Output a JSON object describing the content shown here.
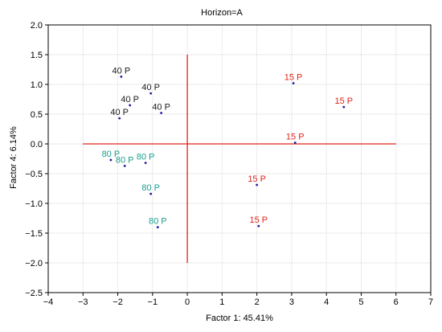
{
  "chart_data": {
    "type": "scatter",
    "title": "Horizon=A",
    "xlabel": "Factor 1: 45.41%",
    "ylabel": "Factor 4:  6.14%",
    "xlim": [
      -4,
      7
    ],
    "ylim": [
      -2.5,
      2.0
    ],
    "xticks": [
      -4,
      -3,
      -2,
      -1,
      0,
      1,
      2,
      3,
      4,
      5,
      6,
      7
    ],
    "yticks": [
      -2.5,
      -2.0,
      -1.5,
      -1.0,
      -0.5,
      0.0,
      0.5,
      1.0,
      1.5,
      2.0
    ],
    "xtick_labels": [
      "−4",
      "−3",
      "−2",
      "−1",
      "0",
      "1",
      "2",
      "3",
      "4",
      "5",
      "6",
      "7"
    ],
    "ytick_labels": [
      "−2.5",
      "−2.0",
      "−1.5",
      "−1.0",
      "−0.5",
      "0.0",
      "0.5",
      "1.0",
      "1.5",
      "2.0"
    ],
    "grid": true,
    "series": [
      {
        "label": "40 P",
        "color": "#1a1a1a",
        "points": [
          [
            -1.9,
            1.13
          ],
          [
            -1.05,
            0.85
          ],
          [
            -1.65,
            0.65
          ],
          [
            -0.75,
            0.52
          ],
          [
            -1.95,
            0.43
          ]
        ]
      },
      {
        "label": "80 P",
        "color": "#1a9e8e",
        "points": [
          [
            -2.2,
            -0.27
          ],
          [
            -1.8,
            -0.37
          ],
          [
            -1.2,
            -0.32
          ],
          [
            -1.05,
            -0.84
          ],
          [
            -0.85,
            -1.4
          ]
        ]
      },
      {
        "label": "15 P",
        "color": "#e0241c",
        "points": [
          [
            3.05,
            1.02
          ],
          [
            4.5,
            0.62
          ],
          [
            3.1,
            0.02
          ],
          [
            2.0,
            -0.69
          ],
          [
            2.05,
            -1.38
          ]
        ]
      }
    ],
    "reference_lines": {
      "x": 0,
      "y": 0,
      "x_extent": [
        -3,
        6
      ],
      "y_extent": [
        -2,
        1.5
      ],
      "color": "#e0241c"
    }
  }
}
